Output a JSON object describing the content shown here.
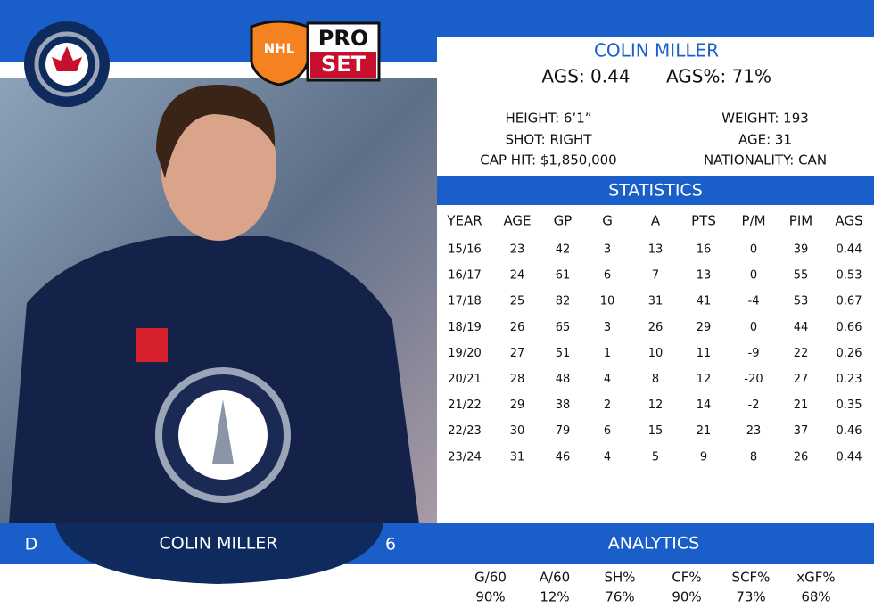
{
  "logo": {
    "nhl": "NHL",
    "pro": "PRO",
    "set": "SET"
  },
  "player": {
    "name": "COLIN MILLER",
    "ags": "AGS: 0.44",
    "ags_pct": "AGS%: 71%"
  },
  "bio": {
    "height": "HEIGHT: 6’1”",
    "shot": "SHOT: RIGHT",
    "cap_hit": "CAP HIT: $1,850,000",
    "weight": "WEIGHT: 193",
    "age": "AGE: 31",
    "nationality": "NATIONALITY: CAN"
  },
  "statistics": {
    "title": "STATISTICS",
    "columns": [
      "YEAR",
      "AGE",
      "GP",
      "G",
      "A",
      "PTS",
      "P/M",
      "PIM",
      "AGS"
    ],
    "rows": [
      [
        "15/16",
        23,
        42,
        3,
        13,
        16,
        0,
        39,
        0.44
      ],
      [
        "16/17",
        24,
        61,
        6,
        7,
        13,
        0,
        55,
        0.53
      ],
      [
        "17/18",
        25,
        82,
        10,
        31,
        41,
        -4,
        53,
        0.67
      ],
      [
        "18/19",
        26,
        65,
        3,
        26,
        29,
        0,
        44,
        0.66
      ],
      [
        "19/20",
        27,
        51,
        1,
        10,
        11,
        -9,
        22,
        0.26
      ],
      [
        "20/21",
        28,
        48,
        4,
        8,
        12,
        -20,
        27,
        0.23
      ],
      [
        "21/22",
        29,
        38,
        2,
        12,
        14,
        -2,
        21,
        0.35
      ],
      [
        "22/23",
        30,
        79,
        6,
        15,
        21,
        23,
        37,
        0.46
      ],
      [
        "23/24",
        31,
        46,
        4,
        5,
        9,
        8,
        26,
        0.44
      ]
    ]
  },
  "banner": {
    "position": "D",
    "name": "COLIN MILLER",
    "number": 6
  },
  "analytics": {
    "title": "ANALYTICS",
    "columns": [
      "G/60",
      "A/60",
      "SH%",
      "CF%",
      "SCF%",
      "xGF%"
    ],
    "values": [
      "90%",
      "12%",
      "76%",
      "90%",
      "73%",
      "68%"
    ]
  }
}
